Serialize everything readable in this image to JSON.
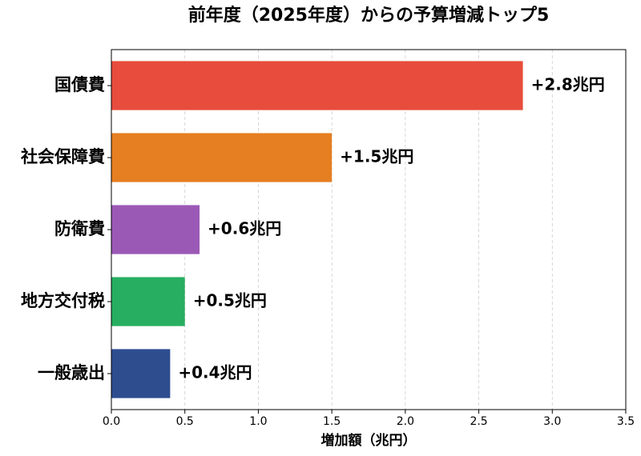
{
  "chart_data": {
    "type": "barh",
    "title": "前年度（2025年度）からの予算増減トップ5",
    "categories": [
      "国債費",
      "社会保障費",
      "防衛費",
      "地方交付税",
      "一般歳出"
    ],
    "values": [
      2.8,
      1.5,
      0.6,
      0.5,
      0.4
    ],
    "value_labels": [
      "+2.8兆円",
      "+1.5兆円",
      "+0.6兆円",
      "+0.5兆円",
      "+0.4兆円"
    ],
    "colors": [
      "#e74c3c",
      "#e67e22",
      "#9b59b6",
      "#27ae60",
      "#2e4d8f"
    ],
    "xlabel": "増加額（兆円）",
    "xlim": [
      0,
      3.5
    ],
    "xticks": [
      {
        "value": 0,
        "label": "0.0"
      },
      0.5,
      {
        "value": 1,
        "label": "1.0"
      },
      1.5,
      {
        "value": 2,
        "label": "2.0"
      },
      2.5,
      {
        "value": 3,
        "label": "3.0"
      },
      3.5
    ],
    "grid": true
  }
}
